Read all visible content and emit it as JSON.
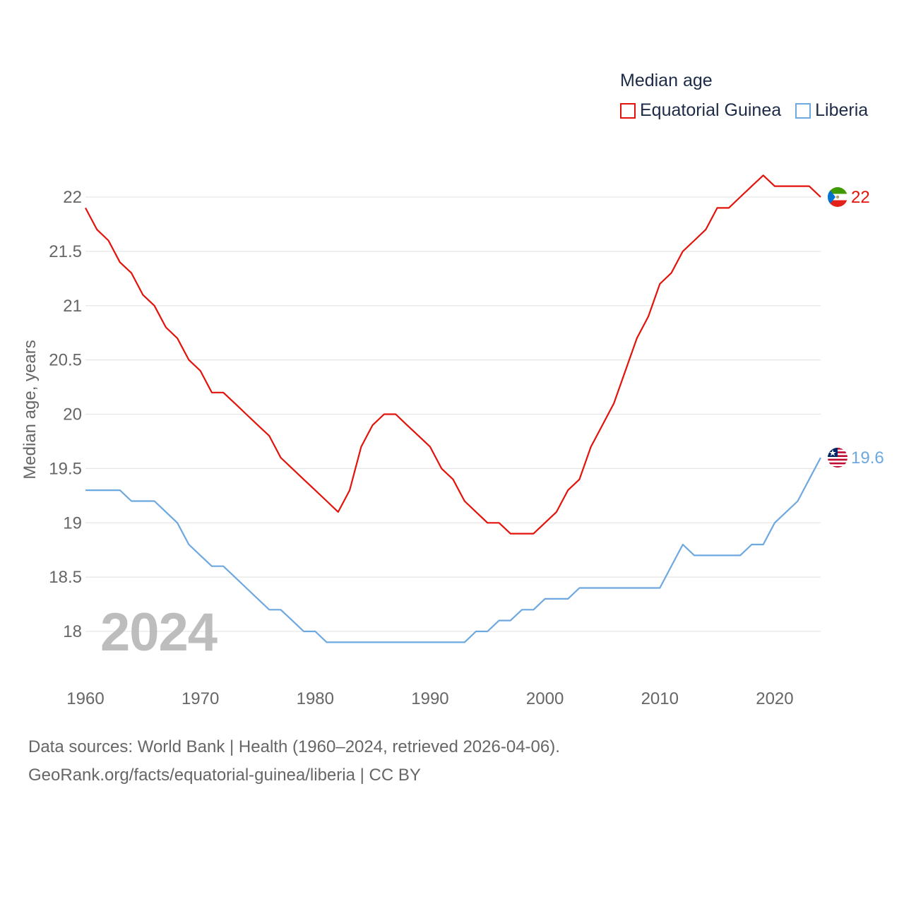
{
  "chart_data": {
    "type": "line",
    "title": "Median age",
    "ylabel": "Median age, years",
    "xlabel": "",
    "xlim": [
      1960,
      2024
    ],
    "ylim": [
      17.6,
      22.35
    ],
    "y_ticks": [
      18,
      18.5,
      19,
      19.5,
      20,
      20.5,
      21,
      21.5,
      22
    ],
    "y_tick_labels": [
      "18",
      "18.5",
      "19",
      "19.5",
      "20",
      "20.5",
      "21",
      "21.5",
      "22"
    ],
    "x_ticks": [
      1960,
      1970,
      1980,
      1990,
      2000,
      2010,
      2020
    ],
    "x_tick_labels": [
      "1960",
      "1970",
      "1980",
      "1990",
      "2000",
      "2010",
      "2020"
    ],
    "grid": true,
    "legend_position": "top-right",
    "year_overlay": "2024",
    "x": [
      1960,
      1961,
      1962,
      1963,
      1964,
      1965,
      1966,
      1967,
      1968,
      1969,
      1970,
      1971,
      1972,
      1973,
      1974,
      1975,
      1976,
      1977,
      1978,
      1979,
      1980,
      1981,
      1982,
      1983,
      1984,
      1985,
      1986,
      1987,
      1988,
      1989,
      1990,
      1991,
      1992,
      1993,
      1994,
      1995,
      1996,
      1997,
      1998,
      1999,
      2000,
      2001,
      2002,
      2003,
      2004,
      2005,
      2006,
      2007,
      2008,
      2009,
      2010,
      2011,
      2012,
      2013,
      2014,
      2015,
      2016,
      2017,
      2018,
      2019,
      2020,
      2021,
      2022,
      2023,
      2024
    ],
    "series": [
      {
        "name": "Equatorial Guinea",
        "color": "#e3120b",
        "end_label": "22",
        "values": [
          21.9,
          21.7,
          21.6,
          21.4,
          21.3,
          21.1,
          21.0,
          20.8,
          20.7,
          20.5,
          20.4,
          20.2,
          20.2,
          20.1,
          20.0,
          19.9,
          19.8,
          19.6,
          19.5,
          19.4,
          19.3,
          19.2,
          19.1,
          19.3,
          19.7,
          19.9,
          20.0,
          20.0,
          19.9,
          19.8,
          19.7,
          19.5,
          19.4,
          19.2,
          19.1,
          19.0,
          19.0,
          18.9,
          18.9,
          18.9,
          19.0,
          19.1,
          19.3,
          19.4,
          19.7,
          19.9,
          20.1,
          20.4,
          20.7,
          20.9,
          21.2,
          21.3,
          21.5,
          21.6,
          21.7,
          21.9,
          21.9,
          22.0,
          22.1,
          22.2,
          22.1,
          22.1,
          22.1,
          22.1,
          22.0
        ]
      },
      {
        "name": "Liberia",
        "color": "#6ea8e0",
        "end_label": "19.6",
        "values": [
          19.3,
          19.3,
          19.3,
          19.3,
          19.2,
          19.2,
          19.2,
          19.1,
          19.0,
          18.8,
          18.7,
          18.6,
          18.6,
          18.5,
          18.4,
          18.3,
          18.2,
          18.2,
          18.1,
          18.0,
          18.0,
          17.9,
          17.9,
          17.9,
          17.9,
          17.9,
          17.9,
          17.9,
          17.9,
          17.9,
          17.9,
          17.9,
          17.9,
          17.9,
          18.0,
          18.0,
          18.1,
          18.1,
          18.2,
          18.2,
          18.3,
          18.3,
          18.3,
          18.4,
          18.4,
          18.4,
          18.4,
          18.4,
          18.4,
          18.4,
          18.4,
          18.6,
          18.8,
          18.7,
          18.7,
          18.7,
          18.7,
          18.7,
          18.8,
          18.8,
          19.0,
          19.1,
          19.2,
          19.4,
          19.6
        ]
      }
    ]
  },
  "footer": {
    "sources": "Data sources: World Bank | Health (1960–2024, retrieved 2026-04-06).",
    "url": "GeoRank.org/facts/equatorial-guinea/liberia | CC BY"
  }
}
